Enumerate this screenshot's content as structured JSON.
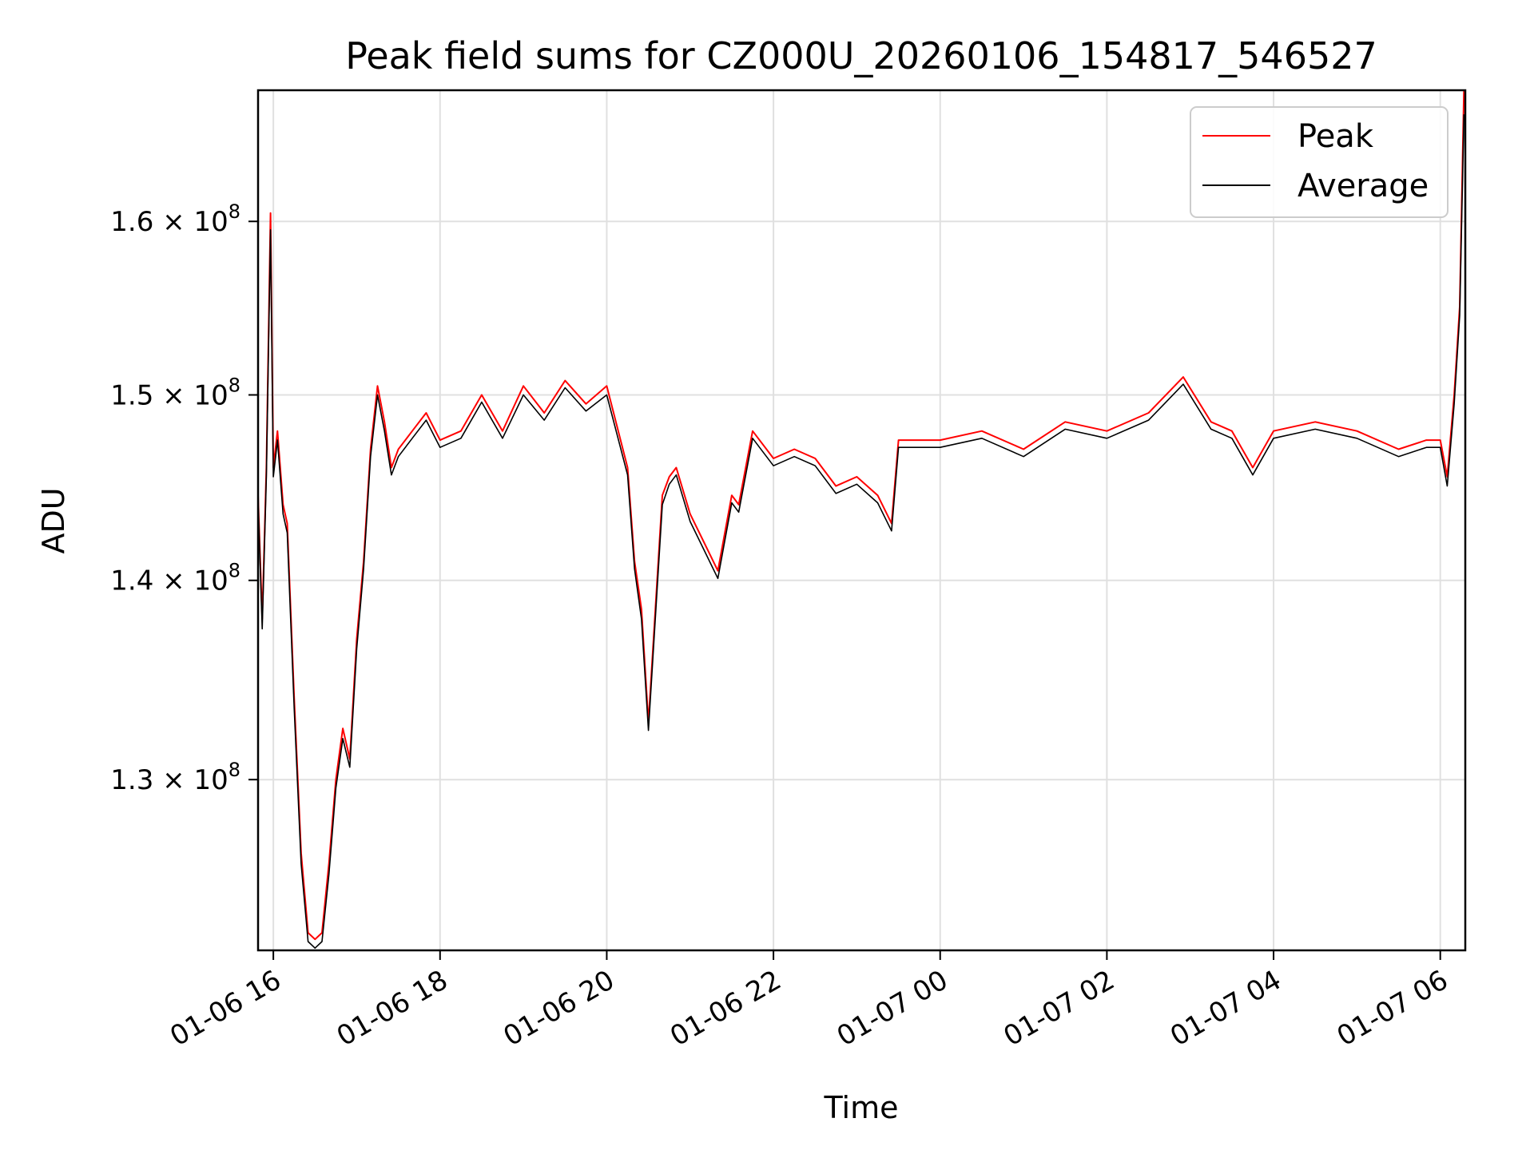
{
  "chart_data": {
    "type": "line",
    "title": "Peak field sums for CZ000U_20260106_154817_546527",
    "xlabel": "Time",
    "ylabel": "ADU",
    "y_scale": "log",
    "xlim": [
      "2026-01-06 15:49",
      "2026-01-07 06:18"
    ],
    "ylim": [
      122000000,
      168000000
    ],
    "grid": true,
    "legend_position": "top-right",
    "x_ticks": [
      {
        "t": "2026-01-06 16:00",
        "label": "01-06 16"
      },
      {
        "t": "2026-01-06 18:00",
        "label": "01-06 18"
      },
      {
        "t": "2026-01-06 20:00",
        "label": "01-06 20"
      },
      {
        "t": "2026-01-06 22:00",
        "label": "01-06 22"
      },
      {
        "t": "2026-01-07 00:00",
        "label": "01-07 00"
      },
      {
        "t": "2026-01-07 02:00",
        "label": "01-07 02"
      },
      {
        "t": "2026-01-07 04:00",
        "label": "01-07 04"
      },
      {
        "t": "2026-01-07 06:00",
        "label": "01-07 06"
      }
    ],
    "y_ticks": [
      {
        "value": 130000000,
        "mantissa": "1.3",
        "exponent": "8"
      },
      {
        "value": 140000000,
        "mantissa": "1.4",
        "exponent": "8"
      },
      {
        "value": 150000000,
        "mantissa": "1.5",
        "exponent": "8"
      },
      {
        "value": 160000000,
        "mantissa": "1.6",
        "exponent": "8"
      }
    ],
    "x": [
      "2026-01-06 15:49",
      "2026-01-06 15:52",
      "2026-01-06 15:55",
      "2026-01-06 15:58",
      "2026-01-06 16:00",
      "2026-01-06 16:03",
      "2026-01-06 16:07",
      "2026-01-06 16:10",
      "2026-01-06 16:15",
      "2026-01-06 16:20",
      "2026-01-06 16:25",
      "2026-01-06 16:30",
      "2026-01-06 16:35",
      "2026-01-06 16:40",
      "2026-01-06 16:45",
      "2026-01-06 16:50",
      "2026-01-06 16:55",
      "2026-01-06 17:00",
      "2026-01-06 17:05",
      "2026-01-06 17:10",
      "2026-01-06 17:15",
      "2026-01-06 17:20",
      "2026-01-06 17:25",
      "2026-01-06 17:30",
      "2026-01-06 17:40",
      "2026-01-06 17:50",
      "2026-01-06 18:00",
      "2026-01-06 18:15",
      "2026-01-06 18:30",
      "2026-01-06 18:45",
      "2026-01-06 19:00",
      "2026-01-06 19:15",
      "2026-01-06 19:30",
      "2026-01-06 19:45",
      "2026-01-06 20:00",
      "2026-01-06 20:15",
      "2026-01-06 20:20",
      "2026-01-06 20:25",
      "2026-01-06 20:30",
      "2026-01-06 20:40",
      "2026-01-06 20:45",
      "2026-01-06 20:50",
      "2026-01-06 21:00",
      "2026-01-06 21:10",
      "2026-01-06 21:20",
      "2026-01-06 21:30",
      "2026-01-06 21:35",
      "2026-01-06 21:45",
      "2026-01-06 22:00",
      "2026-01-06 22:15",
      "2026-01-06 22:30",
      "2026-01-06 22:45",
      "2026-01-06 23:00",
      "2026-01-06 23:15",
      "2026-01-06 23:25",
      "2026-01-06 23:30",
      "2026-01-06 23:45",
      "2026-01-07 00:00",
      "2026-01-07 00:30",
      "2026-01-07 01:00",
      "2026-01-07 01:30",
      "2026-01-07 02:00",
      "2026-01-07 02:30",
      "2026-01-07 02:55",
      "2026-01-07 03:15",
      "2026-01-07 03:30",
      "2026-01-07 03:45",
      "2026-01-07 04:00",
      "2026-01-07 04:30",
      "2026-01-07 05:00",
      "2026-01-07 05:30",
      "2026-01-07 05:50",
      "2026-01-07 06:00",
      "2026-01-07 06:05",
      "2026-01-07 06:10",
      "2026-01-07 06:14",
      "2026-01-07 06:17"
    ],
    "series": [
      {
        "name": "Peak",
        "color": "#ff0000",
        "values": [
          144500000,
          138000000,
          146000000,
          160500000,
          146000000,
          148000000,
          144000000,
          143000000,
          134000000,
          126500000,
          122800000,
          122500000,
          122800000,
          126000000,
          130000000,
          132500000,
          131000000,
          137000000,
          141000000,
          147000000,
          150500000,
          148500000,
          146000000,
          147000000,
          148000000,
          149000000,
          147500000,
          148000000,
          150000000,
          148000000,
          150500000,
          149000000,
          150800000,
          149500000,
          150500000,
          146000000,
          141000000,
          138500000,
          132800000,
          144500000,
          145500000,
          146000000,
          143500000,
          142000000,
          140500000,
          144500000,
          144000000,
          148000000,
          146500000,
          147000000,
          146500000,
          145000000,
          145500000,
          144500000,
          143000000,
          147500000,
          147500000,
          147500000,
          148000000,
          147000000,
          148500000,
          148000000,
          149000000,
          151000000,
          148500000,
          148000000,
          146000000,
          148000000,
          148500000,
          148000000,
          147000000,
          147500000,
          147500000,
          145500000,
          150000000,
          155000000,
          168000000
        ]
      },
      {
        "name": "Average",
        "color": "#000000",
        "values": [
          144200000,
          137500000,
          145500000,
          159500000,
          145500000,
          147500000,
          143500000,
          142500000,
          133500000,
          126000000,
          122400000,
          122100000,
          122400000,
          125500000,
          129600000,
          132000000,
          130600000,
          136500000,
          140600000,
          146600000,
          150000000,
          148000000,
          145600000,
          146600000,
          147600000,
          148600000,
          147100000,
          147600000,
          149600000,
          147600000,
          150000000,
          148600000,
          150400000,
          149100000,
          150000000,
          145600000,
          140600000,
          138000000,
          132400000,
          144000000,
          145100000,
          145600000,
          143100000,
          141600000,
          140100000,
          144100000,
          143600000,
          147600000,
          146100000,
          146600000,
          146100000,
          144600000,
          145100000,
          144100000,
          142600000,
          147100000,
          147100000,
          147100000,
          147600000,
          146600000,
          148100000,
          147600000,
          148600000,
          150600000,
          148100000,
          147600000,
          145600000,
          147600000,
          148100000,
          147600000,
          146600000,
          147100000,
          147100000,
          145000000,
          149500000,
          154500000,
          166500000
        ]
      }
    ]
  }
}
